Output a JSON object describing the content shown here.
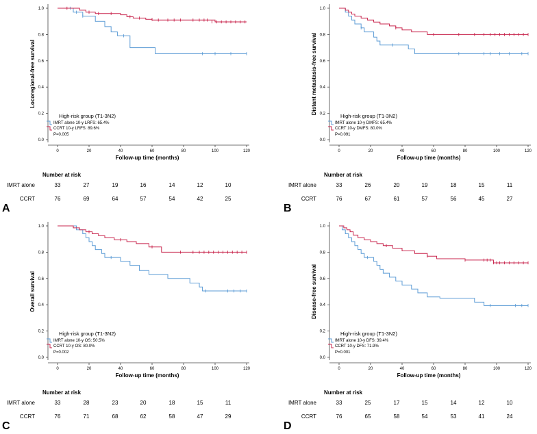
{
  "colors": {
    "imrt": "#5b9bd5",
    "ccrt": "#c8244c",
    "axis": "#444444",
    "text": "#000000"
  },
  "panels": [
    {
      "letter": "A",
      "chart_data": {
        "type": "line",
        "title": "",
        "xlabel": "Follow-up time (months)",
        "ylabel": "Locoregional-free survival",
        "xlim": [
          0,
          120
        ],
        "ylim": [
          0,
          1
        ],
        "xticks": [
          "0",
          "20",
          "40",
          "60",
          "80",
          "100",
          "120"
        ],
        "yticks": [
          "0.0",
          "0.2",
          "0.4",
          "0.6",
          "0.8",
          "1.0"
        ],
        "legend": {
          "title": "High-risk group (T1-3N2)",
          "entries": [
            "IMRT alone 10-y LRFS: 65.4%",
            "CCRT 10-y LRFS: 89.6%"
          ],
          "pvalue": "P=0.005"
        },
        "series": [
          {
            "name": "IMRT alone",
            "x": [
              0,
              10,
              12,
              16,
              20,
              24,
              28,
              30,
              34,
              38,
              44,
              46,
              60,
              62,
              120
            ],
            "y": [
              1.0,
              0.97,
              0.97,
              0.94,
              0.94,
              0.9,
              0.9,
              0.86,
              0.82,
              0.79,
              0.79,
              0.7,
              0.7,
              0.654,
              0.654
            ],
            "censor": [
              [
                8,
                1.0
              ],
              [
                12,
                0.97
              ],
              [
                16,
                0.94
              ],
              [
                42,
                0.79
              ],
              [
                92,
                0.654
              ],
              [
                100,
                0.654
              ],
              [
                110,
                0.654
              ],
              [
                120,
                0.654
              ]
            ]
          },
          {
            "name": "CCRT",
            "x": [
              0,
              14,
              18,
              24,
              30,
              40,
              44,
              48,
              56,
              60,
              96,
              100,
              120
            ],
            "y": [
              1.0,
              0.985,
              0.97,
              0.96,
              0.96,
              0.95,
              0.935,
              0.925,
              0.915,
              0.91,
              0.91,
              0.896,
              0.896
            ],
            "censor": [
              [
                6,
                1.0
              ],
              [
                20,
                0.97
              ],
              [
                26,
                0.96
              ],
              [
                34,
                0.96
              ],
              [
                46,
                0.935
              ],
              [
                52,
                0.925
              ],
              [
                60,
                0.915
              ],
              [
                64,
                0.91
              ],
              [
                70,
                0.91
              ],
              [
                74,
                0.91
              ],
              [
                78,
                0.91
              ],
              [
                86,
                0.91
              ],
              [
                90,
                0.91
              ],
              [
                93,
                0.91
              ],
              [
                95,
                0.91
              ],
              [
                98,
                0.896
              ],
              [
                101,
                0.896
              ],
              [
                104,
                0.896
              ],
              [
                107,
                0.896
              ],
              [
                110,
                0.896
              ],
              [
                113,
                0.896
              ],
              [
                116,
                0.896
              ],
              [
                119,
                0.896
              ]
            ]
          }
        ]
      },
      "risk": {
        "header": "Number at risk",
        "rows": [
          {
            "label": "IMRT alone",
            "values": [
              "33",
              "27",
              "19",
              "16",
              "14",
              "12",
              "10"
            ]
          },
          {
            "label": "CCRT",
            "values": [
              "76",
              "69",
              "64",
              "57",
              "54",
              "42",
              "25"
            ]
          }
        ]
      }
    },
    {
      "letter": "B",
      "chart_data": {
        "type": "line",
        "title": "",
        "xlabel": "Follow-up time (months)",
        "ylabel": "Distant metastasis-free survival",
        "xlim": [
          0,
          120
        ],
        "ylim": [
          0,
          1
        ],
        "xticks": [
          "0",
          "20",
          "40",
          "60",
          "80",
          "100",
          "120"
        ],
        "yticks": [
          "0.0",
          "0.2",
          "0.4",
          "0.6",
          "0.8",
          "1.0"
        ],
        "legend": {
          "title": "High-risk group (T1-3N2)",
          "entries": [
            "IMRT alone 10-y DMFS: 65.4%",
            "CCRT 10-y DMFS: 80.0%"
          ],
          "pvalue": "P=0.091"
        },
        "series": [
          {
            "name": "IMRT alone",
            "x": [
              0,
              4,
              6,
              8,
              10,
              14,
              16,
              22,
              24,
              26,
              36,
              44,
              48,
              120
            ],
            "y": [
              1.0,
              0.97,
              0.94,
              0.91,
              0.88,
              0.85,
              0.82,
              0.78,
              0.75,
              0.72,
              0.72,
              0.69,
              0.654,
              0.654
            ],
            "censor": [
              [
                14,
                0.85
              ],
              [
                34,
                0.72
              ],
              [
                76,
                0.654
              ],
              [
                92,
                0.654
              ],
              [
                96,
                0.654
              ],
              [
                102,
                0.654
              ],
              [
                108,
                0.654
              ],
              [
                116,
                0.654
              ],
              [
                120,
                0.654
              ]
            ]
          },
          {
            "name": "CCRT",
            "x": [
              0,
              4,
              6,
              8,
              10,
              14,
              18,
              22,
              26,
              32,
              36,
              40,
              46,
              56,
              120
            ],
            "y": [
              1.0,
              0.985,
              0.97,
              0.955,
              0.94,
              0.925,
              0.91,
              0.895,
              0.88,
              0.865,
              0.85,
              0.835,
              0.82,
              0.8,
              0.8
            ],
            "censor": [
              [
                36,
                0.85
              ],
              [
                60,
                0.8
              ],
              [
                76,
                0.8
              ],
              [
                86,
                0.8
              ],
              [
                92,
                0.8
              ],
              [
                96,
                0.8
              ],
              [
                99,
                0.8
              ],
              [
                102,
                0.8
              ],
              [
                105,
                0.8
              ],
              [
                108,
                0.8
              ],
              [
                111,
                0.8
              ],
              [
                114,
                0.8
              ],
              [
                117,
                0.8
              ],
              [
                120,
                0.8
              ]
            ]
          }
        ]
      },
      "risk": {
        "header": "Number at risk",
        "rows": [
          {
            "label": "IMRT alone",
            "values": [
              "33",
              "26",
              "20",
              "19",
              "18",
              "15",
              "11"
            ]
          },
          {
            "label": "CCRT",
            "values": [
              "76",
              "67",
              "61",
              "57",
              "56",
              "45",
              "27"
            ]
          }
        ]
      }
    },
    {
      "letter": "C",
      "chart_data": {
        "type": "line",
        "title": "",
        "xlabel": "Follow-up time (months)",
        "ylabel": "Overall survival",
        "xlim": [
          0,
          120
        ],
        "ylim": [
          0,
          1
        ],
        "xticks": [
          "0",
          "20",
          "40",
          "60",
          "80",
          "100",
          "120"
        ],
        "yticks": [
          "0.0",
          "0.2",
          "0.4",
          "0.6",
          "0.8",
          "1.0"
        ],
        "legend": {
          "title": "High-risk group (T1-3N2)",
          "entries": [
            "IMRT alone 10-y OS: 50.5%",
            "CCRT 10-y OS: 80.0%"
          ],
          "pvalue": "P=0.002"
        },
        "series": [
          {
            "name": "IMRT alone",
            "x": [
              0,
              12,
              16,
              18,
              20,
              22,
              24,
              28,
              30,
              36,
              40,
              46,
              52,
              58,
              70,
              84,
              90,
              92,
              120
            ],
            "y": [
              1.0,
              0.97,
              0.94,
              0.91,
              0.88,
              0.85,
              0.82,
              0.79,
              0.76,
              0.76,
              0.73,
              0.7,
              0.66,
              0.63,
              0.6,
              0.565,
              0.535,
              0.505,
              0.505
            ],
            "censor": [
              [
                34,
                0.76
              ],
              [
                94,
                0.505
              ],
              [
                108,
                0.505
              ],
              [
                112,
                0.505
              ],
              [
                116,
                0.505
              ],
              [
                120,
                0.505
              ]
            ]
          },
          {
            "name": "CCRT",
            "x": [
              0,
              10,
              14,
              18,
              22,
              26,
              30,
              36,
              44,
              50,
              58,
              66,
              120
            ],
            "y": [
              1.0,
              0.985,
              0.97,
              0.955,
              0.94,
              0.925,
              0.91,
              0.895,
              0.88,
              0.865,
              0.84,
              0.8,
              0.8
            ],
            "censor": [
              [
                20,
                0.955
              ],
              [
                40,
                0.895
              ],
              [
                60,
                0.84
              ],
              [
                78,
                0.8
              ],
              [
                86,
                0.8
              ],
              [
                90,
                0.8
              ],
              [
                93,
                0.8
              ],
              [
                96,
                0.8
              ],
              [
                99,
                0.8
              ],
              [
                102,
                0.8
              ],
              [
                105,
                0.8
              ],
              [
                108,
                0.8
              ],
              [
                111,
                0.8
              ],
              [
                114,
                0.8
              ],
              [
                117,
                0.8
              ],
              [
                120,
                0.8
              ]
            ]
          }
        ]
      },
      "risk": {
        "header": "Number at risk",
        "rows": [
          {
            "label": "IMRT alone",
            "values": [
              "33",
              "28",
              "23",
              "20",
              "18",
              "15",
              "11"
            ]
          },
          {
            "label": "CCRT",
            "values": [
              "76",
              "71",
              "68",
              "62",
              "58",
              "47",
              "29"
            ]
          }
        ]
      }
    },
    {
      "letter": "D",
      "chart_data": {
        "type": "line",
        "title": "",
        "xlabel": "Follow-up time (months)",
        "ylabel": "Disease-free survival",
        "xlim": [
          0,
          120
        ],
        "ylim": [
          0,
          1
        ],
        "xticks": [
          "0",
          "20",
          "40",
          "60",
          "80",
          "100",
          "120"
        ],
        "yticks": [
          "0.0",
          "0.2",
          "0.4",
          "0.6",
          "0.8",
          "1.0"
        ],
        "legend": {
          "title": "High-risk group (T1-3N2)",
          "entries": [
            "IMRT alone 10-y DFS: 39.4%",
            "CCRT 10-y DFS: 71.9%"
          ],
          "pvalue": "P=0.001"
        },
        "series": [
          {
            "name": "IMRT alone",
            "x": [
              0,
              2,
              4,
              6,
              8,
              10,
              12,
              14,
              16,
              18,
              22,
              24,
              26,
              28,
              32,
              36,
              40,
              46,
              50,
              56,
              64,
              76,
              86,
              92,
              120
            ],
            "y": [
              1.0,
              0.97,
              0.94,
              0.91,
              0.88,
              0.85,
              0.82,
              0.79,
              0.76,
              0.76,
              0.73,
              0.7,
              0.67,
              0.64,
              0.61,
              0.58,
              0.55,
              0.52,
              0.49,
              0.46,
              0.45,
              0.45,
              0.42,
              0.394,
              0.394
            ],
            "censor": [
              [
                18,
                0.76
              ],
              [
                96,
                0.394
              ],
              [
                112,
                0.394
              ],
              [
                116,
                0.394
              ],
              [
                120,
                0.394
              ]
            ]
          },
          {
            "name": "CCRT",
            "x": [
              0,
              3,
              5,
              7,
              9,
              12,
              16,
              20,
              24,
              28,
              34,
              40,
              48,
              56,
              62,
              80,
              96,
              98,
              120
            ],
            "y": [
              1.0,
              0.985,
              0.97,
              0.955,
              0.93,
              0.91,
              0.895,
              0.88,
              0.865,
              0.85,
              0.83,
              0.81,
              0.79,
              0.77,
              0.75,
              0.74,
              0.74,
              0.719,
              0.719
            ],
            "censor": [
              [
                30,
                0.85
              ],
              [
                56,
                0.77
              ],
              [
                80,
                0.74
              ],
              [
                92,
                0.74
              ],
              [
                94,
                0.74
              ],
              [
                96,
                0.74
              ],
              [
                98,
                0.719
              ],
              [
                100,
                0.719
              ],
              [
                102,
                0.719
              ],
              [
                105,
                0.719
              ],
              [
                108,
                0.719
              ],
              [
                111,
                0.719
              ],
              [
                114,
                0.719
              ],
              [
                117,
                0.719
              ],
              [
                120,
                0.719
              ]
            ]
          }
        ]
      },
      "risk": {
        "header": "Number at risk",
        "rows": [
          {
            "label": "IMRT alone",
            "values": [
              "33",
              "25",
              "17",
              "15",
              "14",
              "12",
              "10"
            ]
          },
          {
            "label": "CCRT",
            "values": [
              "76",
              "65",
              "58",
              "54",
              "53",
              "41",
              "24"
            ]
          }
        ]
      }
    }
  ]
}
